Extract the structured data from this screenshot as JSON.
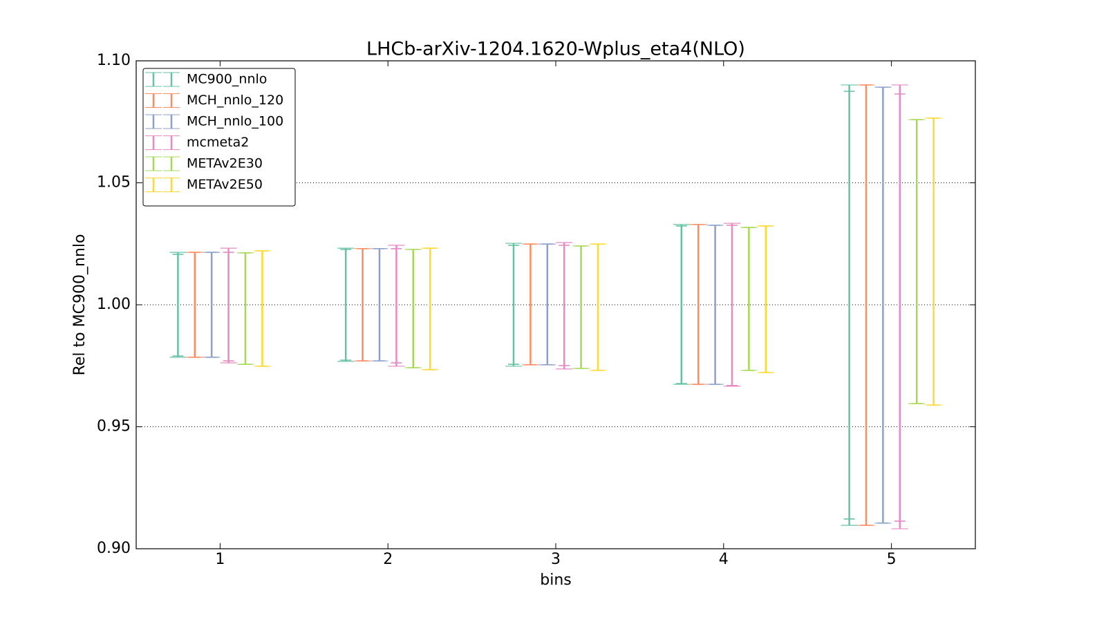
{
  "chart_data": {
    "type": "errorbar",
    "title": "LHCb-arXiv-1204.1620-Wplus_eta4(NLO)",
    "x_label": "bins",
    "y_label": "Rel to MC900_nnlo",
    "x": [
      1,
      2,
      3,
      4,
      5
    ],
    "xlim": [
      0.5,
      5.5
    ],
    "xticks": [
      1,
      2,
      3,
      4,
      5
    ],
    "ylim": [
      0.9,
      1.1
    ],
    "yticks": [
      {
        "value": 0.9,
        "label": "0.90"
      },
      {
        "value": 0.95,
        "label": "0.95"
      },
      {
        "value": 1.0,
        "label": "1.00"
      },
      {
        "value": 1.05,
        "label": "1.05"
      },
      {
        "value": 1.1,
        "label": "1.10"
      }
    ],
    "grid": true,
    "legend": "upper left",
    "series": [
      {
        "name": "MC900_nnlo",
        "color": "#66c2a5",
        "high": [
          1.0215,
          1.0232,
          1.0252,
          1.0329,
          1.0901
        ],
        "low": [
          0.9785,
          0.9768,
          0.9748,
          0.9674,
          0.9096
        ],
        "inner_high": [
          1.0207,
          1.0227,
          1.0244,
          1.0323,
          1.0875
        ],
        "inner_low": [
          0.979,
          0.9773,
          0.9756,
          0.9677,
          0.9122
        ]
      },
      {
        "name": "MCH_nnlo_120",
        "color": "#fc8d62",
        "high": [
          1.0215,
          1.023,
          1.0249,
          1.0329,
          1.0901
        ],
        "low": [
          0.9785,
          0.977,
          0.9754,
          0.9674,
          0.9096
        ],
        "inner_high": [
          1.0215,
          1.023,
          1.0249,
          1.0329,
          1.0901
        ],
        "inner_low": [
          0.9785,
          0.977,
          0.9754,
          0.9674,
          0.9096
        ]
      },
      {
        "name": "MCH_nnlo_100",
        "color": "#8da0cb",
        "high": [
          1.0215,
          1.023,
          1.0249,
          1.0326,
          1.0892
        ],
        "low": [
          0.9785,
          0.977,
          0.9754,
          0.9674,
          0.9105
        ],
        "inner_high": [
          1.0215,
          1.023,
          1.0249,
          1.0326,
          1.0892
        ],
        "inner_low": [
          0.9785,
          0.977,
          0.9754,
          0.9674,
          0.9105
        ]
      },
      {
        "name": "mcmeta2",
        "color": "#e78ac3",
        "high": [
          1.0232,
          1.0244,
          1.0255,
          1.0334,
          1.0901
        ],
        "low": [
          0.9762,
          0.9748,
          0.9737,
          0.9666,
          0.9082
        ],
        "inner_high": [
          1.0215,
          1.023,
          1.0244,
          1.0326,
          1.0864
        ],
        "inner_low": [
          0.977,
          0.9762,
          0.9751,
          0.9669,
          0.9113
        ]
      },
      {
        "name": "METAv2E30",
        "color": "#a6d854",
        "high": [
          1.0213,
          1.0227,
          1.0241,
          1.0317,
          1.0759
        ],
        "low": [
          0.9756,
          0.9742,
          0.9739,
          0.9731,
          0.9595
        ],
        "inner_high": [
          1.0213,
          1.0227,
          1.0241,
          1.0317,
          1.0759
        ],
        "inner_low": [
          0.9756,
          0.9742,
          0.9739,
          0.9731,
          0.9595
        ]
      },
      {
        "name": "METAv2E50",
        "color": "#ffd92f",
        "high": [
          1.0221,
          1.0232,
          1.0249,
          1.0323,
          1.0765
        ],
        "low": [
          0.9748,
          0.9734,
          0.9731,
          0.9722,
          0.9589
        ],
        "inner_high": [
          1.0221,
          1.0232,
          1.0249,
          1.0323,
          1.0765
        ],
        "inner_low": [
          0.9748,
          0.9734,
          0.9731,
          0.9722,
          0.9589
        ]
      }
    ]
  }
}
